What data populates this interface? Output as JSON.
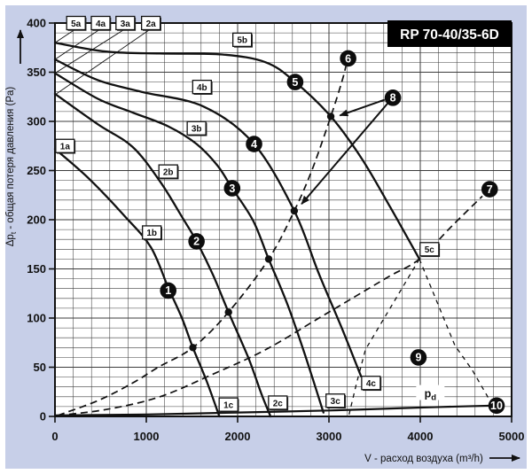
{
  "title": "RP 70-40/35-6D",
  "colors": {
    "panel_bg": "#c7cfe8",
    "plot_bg": "#ffffff",
    "ink": "#111111",
    "grid": "#3c3c3c",
    "title_bg": "#000000",
    "title_fg": "#ffffff"
  },
  "axes": {
    "x": {
      "label": "V - расход воздуха (m³/h)",
      "min": 0,
      "max": 5000,
      "major_step": 1000,
      "minor_step": 200,
      "tick_labels": [
        "0",
        "1000",
        "2000",
        "3000",
        "4000",
        "5000"
      ]
    },
    "y": {
      "label_pre": "Δp",
      "label_sub": "t",
      "label_post": " - общая потеря давления (Pa)",
      "min": 0,
      "max": 400,
      "major_step": 50,
      "minor_step": 10,
      "tick_labels": [
        "0",
        "50",
        "100",
        "150",
        "200",
        "250",
        "300",
        "350",
        "400"
      ]
    }
  },
  "chart_data": {
    "type": "line",
    "xlabel": "V - расход воздуха (m³/h)",
    "ylabel": "Δpt - общая потеря давления (Pa)",
    "xlim": [
      0,
      5000
    ],
    "ylim": [
      0,
      400
    ],
    "grid": true,
    "fan_curves": [
      {
        "id": "1",
        "points": [
          [
            0,
            272
          ],
          [
            370,
            242
          ],
          [
            760,
            204
          ],
          [
            1050,
            172
          ],
          [
            1240,
            131
          ],
          [
            1390,
            100
          ],
          [
            1510,
            70
          ],
          [
            1660,
            36
          ],
          [
            1800,
            0
          ]
        ]
      },
      {
        "id": "2",
        "points": [
          [
            0,
            328
          ],
          [
            470,
            297
          ],
          [
            850,
            274
          ],
          [
            1150,
            239
          ],
          [
            1390,
            203
          ],
          [
            1550,
            178
          ],
          [
            1730,
            144
          ],
          [
            1900,
            106
          ],
          [
            2120,
            59
          ],
          [
            2260,
            23
          ],
          [
            2360,
            0
          ]
        ]
      },
      {
        "id": "3",
        "points": [
          [
            0,
            349
          ],
          [
            470,
            323
          ],
          [
            850,
            309
          ],
          [
            1240,
            295
          ],
          [
            1550,
            277
          ],
          [
            1780,
            255
          ],
          [
            1940,
            232
          ],
          [
            2170,
            199
          ],
          [
            2340,
            160
          ],
          [
            2550,
            113
          ],
          [
            2750,
            59
          ],
          [
            2940,
            4
          ]
        ]
      },
      {
        "id": "4",
        "points": [
          [
            0,
            363
          ],
          [
            470,
            342
          ],
          [
            950,
            330
          ],
          [
            1630,
            315
          ],
          [
            2180,
            277
          ],
          [
            2620,
            209
          ],
          [
            2890,
            145
          ],
          [
            3140,
            90
          ],
          [
            3350,
            41
          ]
        ]
      },
      {
        "id": "5",
        "points": [
          [
            0,
            380
          ],
          [
            560,
            371
          ],
          [
            1150,
            369
          ],
          [
            1830,
            368
          ],
          [
            2310,
            360
          ],
          [
            2630,
            340
          ],
          [
            3020,
            305
          ],
          [
            3360,
            262
          ],
          [
            3670,
            213
          ],
          [
            3990,
            160
          ]
        ]
      }
    ],
    "system_curves": [
      {
        "id": "A",
        "to_marker": "6",
        "points": [
          [
            30,
            1
          ],
          [
            470,
            16
          ],
          [
            850,
            34
          ],
          [
            1130,
            50
          ],
          [
            1510,
            70
          ],
          [
            1900,
            106
          ],
          [
            2340,
            160
          ],
          [
            2620,
            209
          ],
          [
            2820,
            252
          ],
          [
            3020,
            305
          ],
          [
            3140,
            340
          ],
          [
            3185,
            356
          ]
        ]
      },
      {
        "id": "B",
        "to_marker": "7",
        "points": [
          [
            30,
            1
          ],
          [
            560,
            7
          ],
          [
            1150,
            20
          ],
          [
            1730,
            43
          ],
          [
            2310,
            68
          ],
          [
            2890,
            100
          ],
          [
            3380,
            127
          ],
          [
            3670,
            143
          ],
          [
            3990,
            160
          ],
          [
            4350,
            194
          ],
          [
            4680,
            224
          ]
        ]
      }
    ],
    "boundary_dashed": [
      {
        "id": "left",
        "points": [
          [
            3990,
            160
          ],
          [
            3400,
            68
          ],
          [
            3300,
            33
          ],
          [
            3220,
            2
          ]
        ]
      },
      {
        "id": "right",
        "points": [
          [
            3990,
            160
          ],
          [
            4380,
            72
          ],
          [
            4570,
            47
          ],
          [
            4750,
            18
          ]
        ]
      }
    ],
    "pd_line": {
      "label_pre": "p",
      "label_sub": "d",
      "label_at": [
        4110,
        22
      ],
      "points": [
        [
          0,
          1
        ],
        [
          1000,
          2
        ],
        [
          2000,
          4
        ],
        [
          3000,
          6
        ],
        [
          4000,
          9
        ],
        [
          4790,
          11
        ]
      ]
    },
    "operating_points": [
      [
        1510,
        70
      ],
      [
        1900,
        106
      ],
      [
        2340,
        160
      ],
      [
        2620,
        209
      ],
      [
        3020,
        305
      ]
    ],
    "markers": [
      {
        "n": "1",
        "v": 1240,
        "p": 128
      },
      {
        "n": "2",
        "v": 1550,
        "p": 178
      },
      {
        "n": "3",
        "v": 1940,
        "p": 232
      },
      {
        "n": "4",
        "v": 2180,
        "p": 277
      },
      {
        "n": "5",
        "v": 2630,
        "p": 340
      },
      {
        "n": "6",
        "v": 3210,
        "p": 364
      },
      {
        "n": "7",
        "v": 4760,
        "p": 231
      },
      {
        "n": "8",
        "v": 3700,
        "p": 324
      },
      {
        "n": "9",
        "v": 3980,
        "p": 60
      },
      {
        "n": "10",
        "v": 4835,
        "p": 11
      }
    ],
    "arrows": [
      {
        "from": [
          3610,
          322
        ],
        "to": [
          3120,
          306
        ]
      },
      {
        "from": [
          3640,
          318
        ],
        "to": [
          2700,
          216
        ]
      }
    ],
    "curve_labels": [
      {
        "text": "5a",
        "v": 230,
        "p": 400,
        "leader_to": [
          0,
          380
        ]
      },
      {
        "text": "4a",
        "v": 500,
        "p": 400,
        "leader_to": [
          0,
          363
        ]
      },
      {
        "text": "3a",
        "v": 770,
        "p": 400,
        "leader_to": [
          0,
          349
        ]
      },
      {
        "text": "2a",
        "v": 1050,
        "p": 400,
        "leader_to": [
          0,
          327
        ]
      },
      {
        "text": "1a",
        "v": 110,
        "p": 275,
        "leader_to": null
      },
      {
        "text": "5b",
        "v": 2050,
        "p": 383,
        "leader_to": null
      },
      {
        "text": "4b",
        "v": 1610,
        "p": 335,
        "leader_to": null
      },
      {
        "text": "3b",
        "v": 1550,
        "p": 293,
        "leader_to": null
      },
      {
        "text": "2b",
        "v": 1240,
        "p": 249,
        "leader_to": null
      },
      {
        "text": "1b",
        "v": 1060,
        "p": 187,
        "leader_to": null
      },
      {
        "text": "1c",
        "v": 1900,
        "p": 12,
        "leader_to": null
      },
      {
        "text": "2c",
        "v": 2440,
        "p": 14,
        "leader_to": null
      },
      {
        "text": "3c",
        "v": 3070,
        "p": 16,
        "leader_to": null
      },
      {
        "text": "4c",
        "v": 3460,
        "p": 34,
        "leader_to": null
      },
      {
        "text": "5c",
        "v": 4100,
        "p": 170,
        "leader_to": null
      }
    ]
  }
}
